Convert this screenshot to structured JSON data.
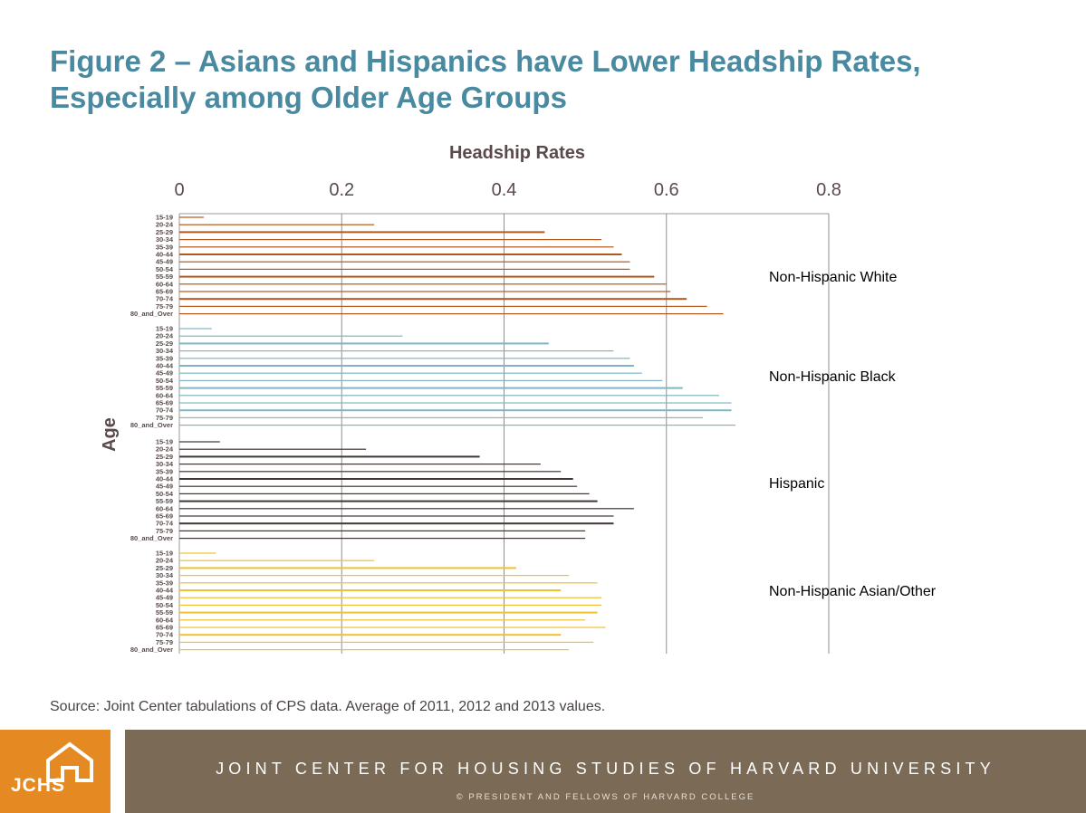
{
  "title": {
    "line1": "Figure 2 – Asians and Hispanics have Lower Headship Rates,",
    "line2": "Especially among Older Age Groups"
  },
  "chart_data": {
    "type": "bar",
    "orientation": "horizontal",
    "xlabel": "Headship Rates",
    "ylabel": "Age",
    "xlim": [
      0,
      0.8
    ],
    "x_ticks": [
      "0",
      "0.2",
      "0.4",
      "0.6",
      "0.8"
    ],
    "grid": "vertical",
    "categories": [
      "15-19",
      "20-24",
      "25-29",
      "30-34",
      "35-39",
      "40-44",
      "45-49",
      "50-54",
      "55-59",
      "60-64",
      "65-69",
      "70-74",
      "75-79",
      "80_and_Over"
    ],
    "series": [
      {
        "name": "Non-Hispanic  White",
        "color": "#b3581c",
        "values": [
          0.03,
          0.24,
          0.45,
          0.52,
          0.535,
          0.545,
          0.555,
          0.555,
          0.585,
          0.6,
          0.605,
          0.625,
          0.65,
          0.67
        ]
      },
      {
        "name": "Non-Hispanic  Black",
        "color": "#7fb5c4",
        "values": [
          0.04,
          0.275,
          0.455,
          0.535,
          0.555,
          0.56,
          0.57,
          0.595,
          0.62,
          0.665,
          0.68,
          0.68,
          0.645,
          0.685
        ]
      },
      {
        "name": "Hispanic",
        "color": "#3f3734",
        "values": [
          0.05,
          0.23,
          0.37,
          0.445,
          0.47,
          0.485,
          0.49,
          0.505,
          0.515,
          0.56,
          0.535,
          0.535,
          0.5,
          0.5
        ]
      },
      {
        "name": "Non-Hispanic  Asian/Other",
        "color": "#efc22f",
        "values": [
          0.045,
          0.24,
          0.415,
          0.48,
          0.515,
          0.47,
          0.52,
          0.52,
          0.515,
          0.5,
          0.525,
          0.47,
          0.51,
          0.48
        ]
      }
    ]
  },
  "source": "Source: Joint Center tabulations of CPS data.  Average of 2011, 2012 and 2013 values.",
  "footer": {
    "logo_text": "JCHS",
    "org_name": "JOINT CENTER FOR HOUSING STUDIES OF HARVARD UNIVERSITY",
    "copyright": "© PRESIDENT AND FELLOWS OF HARVARD COLLEGE",
    "logo_color": "#e58a22",
    "bar_color": "#7b6a55"
  }
}
